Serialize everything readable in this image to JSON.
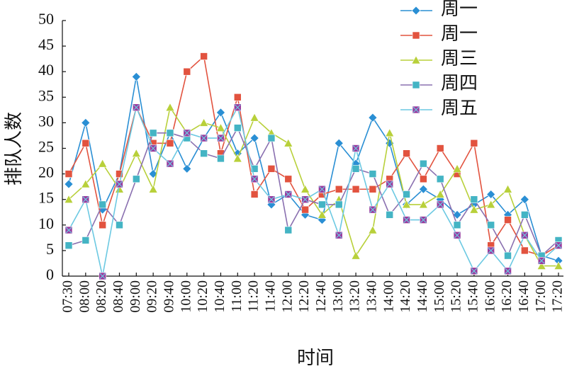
{
  "chart_data": {
    "type": "line",
    "xlabel": "时间",
    "ylabel": "排队人数",
    "categories": [
      "07:30",
      "08:00",
      "08:20",
      "08:40",
      "09:00",
      "09:20",
      "09:40",
      "10:00",
      "10:20",
      "10:40",
      "11:00",
      "11:20",
      "11:40",
      "12:00",
      "12:20",
      "12:40",
      "13:00",
      "13:20",
      "13:40",
      "14:00",
      "14:20",
      "14:40",
      "15:00",
      "15:20",
      "15:40",
      "16:00",
      "16:20",
      "16:40",
      "17:00",
      "17:20"
    ],
    "series": [
      {
        "name": "周一",
        "color": "#2a8fd4",
        "marker": "diamond",
        "values": [
          18,
          30,
          13,
          20,
          39,
          20,
          28,
          21,
          27,
          32,
          24,
          27,
          14,
          16,
          12,
          11,
          26,
          22,
          31,
          26,
          14,
          17,
          15,
          12,
          14,
          16,
          12,
          15,
          4,
          3
        ]
      },
      {
        "name": "周一",
        "color": "#e2533f",
        "marker": "square",
        "values": [
          20,
          26,
          10,
          20,
          33,
          26,
          26,
          40,
          43,
          24,
          35,
          16,
          21,
          19,
          13,
          16,
          17,
          17,
          17,
          19,
          24,
          19,
          25,
          20,
          26,
          6,
          11,
          5,
          4,
          6
        ]
      },
      {
        "name": "周三",
        "color": "#b8d03a",
        "marker": "triangle",
        "values": [
          15,
          18,
          22,
          17,
          24,
          17,
          33,
          28,
          30,
          29,
          23,
          31,
          28,
          26,
          17,
          12,
          15,
          4,
          9,
          28,
          14,
          14,
          16,
          21,
          13,
          14,
          17,
          8,
          2,
          2
        ]
      },
      {
        "name": "周四",
        "color": "#8a70b0",
        "marker_color": "#44b4c4",
        "marker": "square",
        "values": [
          6,
          7,
          14,
          10,
          19,
          28,
          28,
          27,
          24,
          23,
          29,
          21,
          27,
          9,
          15,
          14,
          14,
          21,
          20,
          12,
          16,
          22,
          19,
          10,
          15,
          10,
          4,
          12,
          4,
          7
        ]
      },
      {
        "name": "周五",
        "color": "#6cc9e2",
        "marker_color": "#9a3a9e",
        "marker": "xsquare",
        "values": [
          9,
          15,
          0,
          18,
          33,
          25,
          22,
          28,
          27,
          27,
          33,
          19,
          15,
          16,
          15,
          17,
          8,
          25,
          13,
          18,
          11,
          11,
          14,
          8,
          1,
          5,
          1,
          8,
          3,
          6
        ]
      }
    ],
    "ylim": [
      0,
      50
    ],
    "yticks": [
      0,
      5,
      10,
      15,
      20,
      25,
      30,
      35,
      40,
      45,
      50
    ],
    "grid": false
  }
}
